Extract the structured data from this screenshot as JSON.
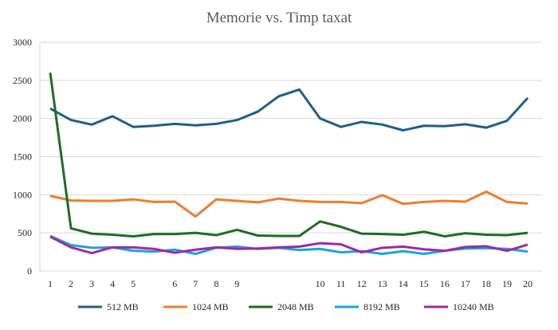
{
  "chart_data": {
    "type": "line",
    "title": "Memorie vs. Timp taxat",
    "xlabel": "",
    "ylabel": "",
    "ylim": [
      0,
      3000
    ],
    "yticks": [
      "0",
      "500",
      "1000",
      "1500",
      "2000",
      "2500",
      "3000"
    ],
    "ytick_values": [
      0,
      500,
      1000,
      1500,
      2000,
      2500,
      3000
    ],
    "categories": [
      "1",
      "2",
      "3",
      "4",
      "5",
      "",
      "6",
      "7",
      "8",
      "9",
      "",
      "",
      "",
      "10",
      "11",
      "12",
      "13",
      "14",
      "15",
      "16",
      "17",
      "18",
      "19",
      "20"
    ],
    "grid": true,
    "legend_position": "bottom",
    "series": [
      {
        "name": "512 MB",
        "color": "#1f5f87",
        "values": [
          2130,
          1980,
          1920,
          2030,
          1890,
          1905,
          1930,
          1910,
          1930,
          1980,
          2090,
          2290,
          2380,
          2000,
          1890,
          1955,
          1920,
          1845,
          1905,
          1900,
          1925,
          1880,
          1970,
          2270
        ]
      },
      {
        "name": "1024 MB",
        "color": "#ed7d31",
        "values": [
          985,
          925,
          920,
          920,
          940,
          905,
          910,
          715,
          940,
          920,
          900,
          950,
          920,
          905,
          905,
          890,
          995,
          880,
          905,
          920,
          910,
          1040,
          905,
          885
        ]
      },
      {
        "name": "2048 MB",
        "color": "#1e6b27",
        "values": [
          2600,
          560,
          490,
          475,
          455,
          485,
          485,
          500,
          470,
          540,
          465,
          460,
          460,
          650,
          580,
          490,
          485,
          475,
          515,
          455,
          495,
          475,
          470,
          500
        ]
      },
      {
        "name": "8192 MB",
        "color": "#1aa3df",
        "values": [
          460,
          340,
          305,
          310,
          265,
          255,
          280,
          225,
          305,
          320,
          290,
          305,
          275,
          290,
          245,
          260,
          225,
          260,
          225,
          265,
          295,
          300,
          290,
          255
        ]
      },
      {
        "name": "10240 MB",
        "color": "#9e2b9e",
        "values": [
          450,
          310,
          235,
          310,
          310,
          290,
          240,
          280,
          310,
          290,
          295,
          310,
          320,
          365,
          350,
          245,
          305,
          320,
          285,
          265,
          315,
          325,
          265,
          345
        ]
      }
    ]
  }
}
